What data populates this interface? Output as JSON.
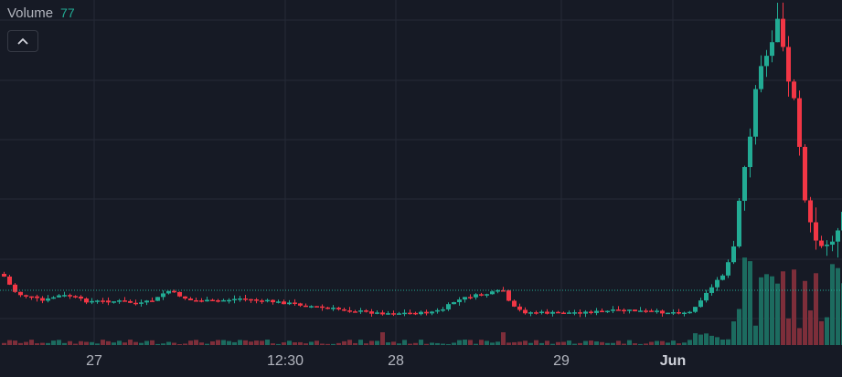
{
  "legend": {
    "label": "Volume",
    "value": "77"
  },
  "toolbar": {
    "collapse_icon": "chevron-up-icon"
  },
  "colors": {
    "background": "#161a25",
    "grid": "#252a36",
    "up": "#22ab94",
    "down": "#f23645",
    "volume_up": "#1c6b5f",
    "volume_down": "#7d2e3a",
    "last_price_line": "#22ab94"
  },
  "chart_data": {
    "type": "candlestick",
    "title": "",
    "xlabel": "",
    "ylabel": "",
    "x_tick_labels": [
      "27",
      "12:30",
      "28",
      "29",
      "Jun"
    ],
    "grid": true,
    "legend": "top-left",
    "series": [
      {
        "name": "Volume",
        "last_value": 77
      }
    ]
  }
}
